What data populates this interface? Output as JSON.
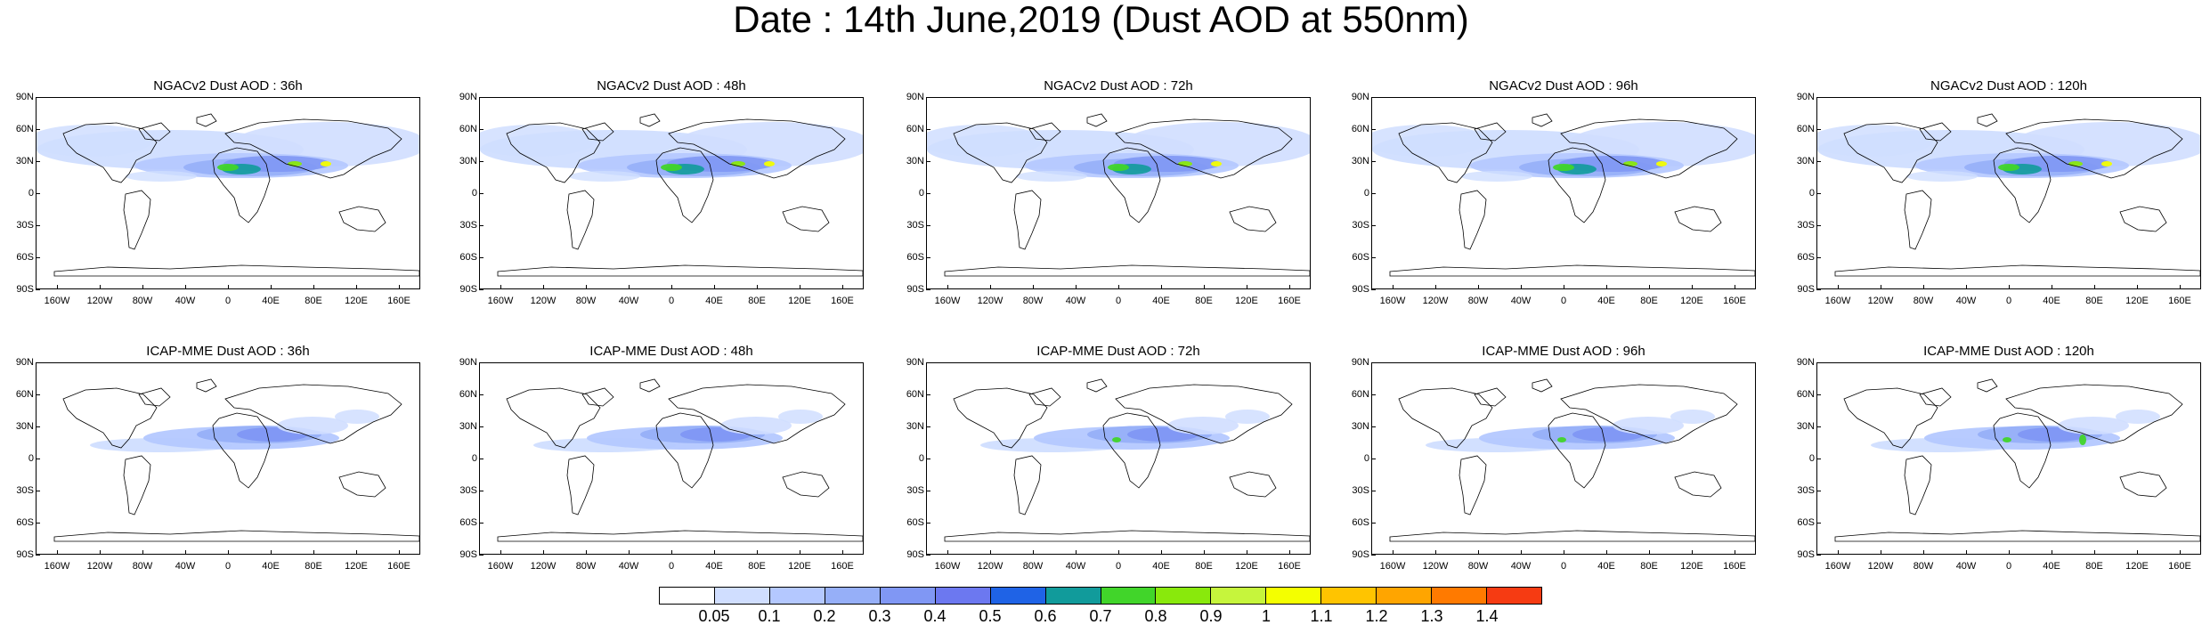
{
  "title": "Date : 14th June,2019 (Dust AOD at 550nm)",
  "panels": [
    {
      "title": "NGACv2 Dust AOD : 36h",
      "model": "NGACv2",
      "lead": "36h"
    },
    {
      "title": "NGACv2 Dust AOD : 48h",
      "model": "NGACv2",
      "lead": "48h"
    },
    {
      "title": "NGACv2 Dust AOD : 72h",
      "model": "NGACv2",
      "lead": "72h"
    },
    {
      "title": "NGACv2 Dust AOD : 96h",
      "model": "NGACv2",
      "lead": "96h"
    },
    {
      "title": "NGACv2 Dust AOD : 120h",
      "model": "NGACv2",
      "lead": "120h"
    },
    {
      "title": "ICAP-MME Dust AOD : 36h",
      "model": "ICAP-MME",
      "lead": "36h"
    },
    {
      "title": "ICAP-MME Dust AOD : 48h",
      "model": "ICAP-MME",
      "lead": "48h"
    },
    {
      "title": "ICAP-MME Dust AOD : 72h",
      "model": "ICAP-MME",
      "lead": "72h"
    },
    {
      "title": "ICAP-MME Dust AOD : 96h",
      "model": "ICAP-MME",
      "lead": "96h"
    },
    {
      "title": "ICAP-MME Dust AOD : 120h",
      "model": "ICAP-MME",
      "lead": "120h"
    }
  ],
  "lat_labels": [
    "90N",
    "60N",
    "30N",
    "0",
    "30S",
    "60S",
    "90S"
  ],
  "lon_labels": [
    "160W",
    "120W",
    "80W",
    "40W",
    "0",
    "40E",
    "80E",
    "120E",
    "160E"
  ],
  "lon_values": [
    -160,
    -120,
    -80,
    -40,
    0,
    40,
    80,
    120,
    160
  ],
  "lat_values": [
    90,
    60,
    30,
    0,
    -30,
    -60,
    -90
  ],
  "colorbar": {
    "labels": [
      "0.05",
      "0.1",
      "0.2",
      "0.3",
      "0.4",
      "0.5",
      "0.6",
      "0.7",
      "0.8",
      "0.9",
      "1",
      "1.1",
      "1.2",
      "1.3",
      "1.4"
    ],
    "colors": [
      "#ffffff",
      "#d0deff",
      "#b4c8ff",
      "#96aff8",
      "#8097f4",
      "#6c78f0",
      "#1f63e6",
      "#119b9b",
      "#41d52a",
      "#89e90c",
      "#c6f53c",
      "#f4ff00",
      "#ffc400",
      "#ffa500",
      "#ff7a00",
      "#f63b12"
    ]
  }
}
